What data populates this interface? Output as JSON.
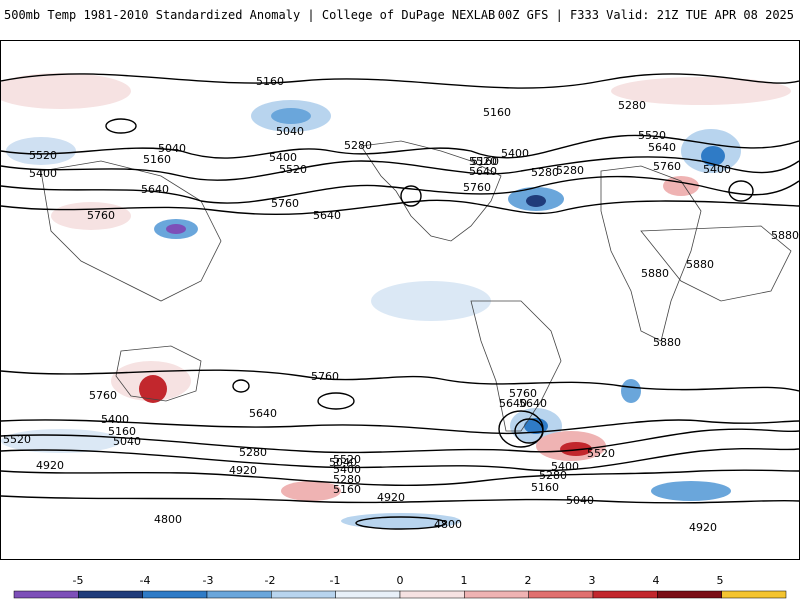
{
  "header": {
    "left": "500mb Temp 1981-2010 Standardized Anomaly | College of DuPage NEXLAB",
    "right": "00Z GFS | F333 Valid: 21Z TUE APR 08 2025"
  },
  "contour_labels": [
    "5160",
    "5040",
    "5160",
    "5280",
    "5040",
    "5160",
    "5280",
    "5400",
    "5520",
    "5640",
    "5760",
    "5640",
    "5760",
    "5400",
    "5520",
    "5160",
    "5280",
    "5400",
    "5520",
    "5640",
    "5760",
    "5280",
    "5520",
    "5640",
    "5760",
    "5400",
    "5880",
    "5880",
    "5880",
    "5880",
    "5760",
    "5640",
    "5400",
    "5520",
    "5160",
    "5040",
    "4920",
    "5280",
    "4920",
    "4800",
    "5640",
    "5760",
    "5520",
    "5400",
    "5280",
    "5160",
    "5040",
    "4920",
    "4800",
    "5760",
    "5640",
    "5520",
    "5400",
    "5280",
    "5160",
    "5040",
    "4920"
  ],
  "colorbar": {
    "ticks": [
      "-5",
      "-4",
      "-3",
      "-2",
      "-1",
      "0",
      "1",
      "2",
      "3",
      "4",
      "5"
    ],
    "colors": [
      "#7d4fb8",
      "#203c7a",
      "#2f7bc6",
      "#6aa6db",
      "#b8d4ee",
      "#e8f0f8",
      "#f6e2e2",
      "#efb3b3",
      "#e0706f",
      "#c2272d",
      "#7a0e16",
      "#f4c430"
    ]
  }
}
